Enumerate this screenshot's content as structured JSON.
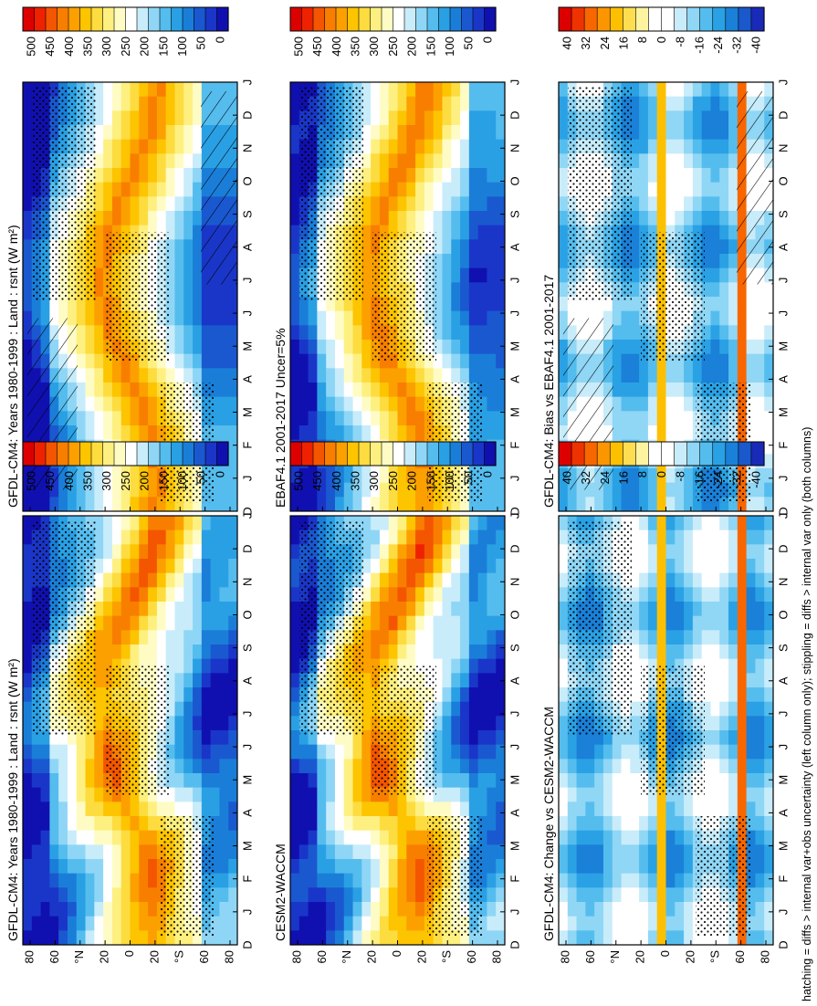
{
  "footer_note": "hatching = diffs > internal var+obs uncertainty (left column only); stippling = diffs > internal var only (both columns)",
  "month_labels": [
    "D",
    "J",
    "F",
    "M",
    "A",
    "M",
    "J",
    "J",
    "A",
    "S",
    "O",
    "N",
    "D",
    "J"
  ],
  "lat_labels": [
    "80",
    "60",
    "°N",
    "20",
    "0",
    "20",
    "°S",
    "60",
    "80"
  ],
  "colors": {
    "abs_scale": [
      "#dd0000",
      "#ee2200",
      "#f45500",
      "#f87e00",
      "#fca000",
      "#fdc400",
      "#fddc40",
      "#fef080",
      "#fefcc4",
      "#ffffff",
      "#c8ecfa",
      "#8fd6f6",
      "#55bcee",
      "#2aa0e4",
      "#1a7ed8",
      "#1a58d0",
      "#1a36c8",
      "#1010b0"
    ],
    "diff_scale": [
      "#dd0000",
      "#ee3300",
      "#f86600",
      "#fc9600",
      "#fdc000",
      "#fede50",
      "#fef4a0",
      "#ffffff",
      "#ffffff",
      "#c8ecfa",
      "#90d6f5",
      "#55bdee",
      "#2aa1e4",
      "#1a80d8",
      "#1a58cc",
      "#1a2ab8"
    ],
    "stipple": "#000000",
    "hatch": "#000000"
  },
  "chart_data": [
    {
      "id": "model_left",
      "type": "heatmap",
      "title": "GFDL-CM4: Years 1980-1999 : Land : rsnt (W m²)",
      "x_axis": "month (Dec to Jan, repeated)",
      "y_axis": "latitude",
      "ylim": [
        -90,
        90
      ],
      "colorbar": {
        "tick_labels": [
          "500",
          "450",
          "400",
          "350",
          "300",
          "250",
          "200",
          "150",
          "100",
          "50",
          "0"
        ],
        "range": [
          0,
          520
        ]
      },
      "stippling": true,
      "hatching": true
    },
    {
      "id": "obs",
      "type": "heatmap",
      "title": "EBAF4.1 2001-2017 Uncer=5%",
      "x_axis": "month",
      "y_axis": "latitude",
      "ylim": [
        -90,
        90
      ],
      "colorbar": {
        "tick_labels": [
          "500",
          "450",
          "400",
          "350",
          "300",
          "250",
          "200",
          "150",
          "100",
          "50",
          "0"
        ],
        "range": [
          0,
          520
        ]
      },
      "stippling": true,
      "hatching": false
    },
    {
      "id": "bias",
      "type": "heatmap",
      "title": "GFDL-CM4: Bias vs EBAF4.1 2001-2017",
      "x_axis": "month",
      "y_axis": "latitude",
      "ylim": [
        -90,
        90
      ],
      "colorbar": {
        "tick_labels": [
          "40",
          "32",
          "24",
          "16",
          "8",
          "0",
          "-8",
          "-16",
          "-24",
          "-32",
          "-40"
        ],
        "range": [
          -44,
          44
        ]
      },
      "stippling": true,
      "hatching": true
    },
    {
      "id": "model_right",
      "type": "heatmap",
      "title": "GFDL-CM4: Years 1980-1999 : Land : rsnt (W m²)",
      "x_axis": "month",
      "y_axis": "latitude",
      "ylim": [
        -90,
        90
      ],
      "colorbar": {
        "tick_labels": [
          "500",
          "450",
          "400",
          "350",
          "300",
          "250",
          "200",
          "150",
          "100",
          "50",
          "0"
        ],
        "range": [
          0,
          520
        ]
      },
      "stippling": true,
      "hatching": false
    },
    {
      "id": "other_model",
      "type": "heatmap",
      "title": "CESM2-WACCM",
      "x_axis": "month",
      "y_axis": "latitude",
      "ylim": [
        -90,
        90
      ],
      "colorbar": {
        "tick_labels": [
          "500",
          "450",
          "400",
          "350",
          "300",
          "250",
          "200",
          "150",
          "100",
          "50",
          "0"
        ],
        "range": [
          0,
          520
        ]
      },
      "stippling": true,
      "hatching": false
    },
    {
      "id": "change",
      "type": "heatmap",
      "title": "GFDL-CM4: Change vs CESM2-WACCM",
      "x_axis": "month",
      "y_axis": "latitude",
      "ylim": [
        -90,
        90
      ],
      "colorbar": {
        "tick_labels": [
          "40",
          "32",
          "24",
          "16",
          "8",
          "0",
          "-8",
          "-16",
          "-24",
          "-32",
          "-40"
        ],
        "range": [
          -44,
          44
        ]
      },
      "stippling": true,
      "hatching": false
    }
  ]
}
